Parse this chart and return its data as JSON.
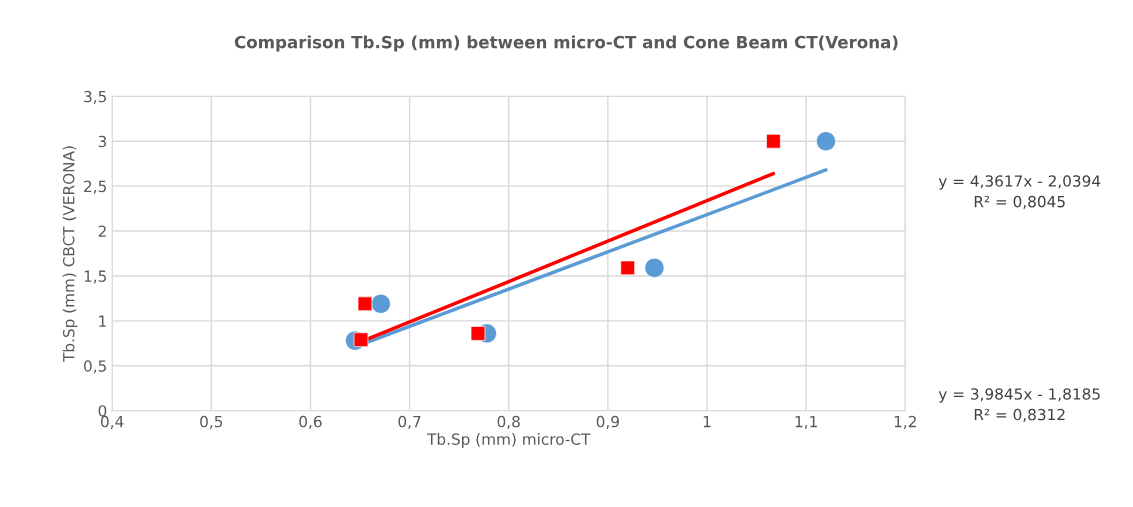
{
  "chart_data": {
    "type": "scatter",
    "title": "Comparison Tb.Sp (mm) between micro-CT and Cone Beam CT(Verona)",
    "xlabel": "Tb.Sp (mm) micro-CT",
    "ylabel": "Tb.Sp (mm) CBCT (VERONA)",
    "series": [
      {
        "marker": "circle",
        "color": "#5b9bd5",
        "x": [
          0.645,
          0.671,
          0.778,
          0.947,
          1.12
        ],
        "values": [
          0.78,
          1.19,
          0.86,
          1.59,
          3.0
        ]
      },
      {
        "marker": "square",
        "color": "#ff0000",
        "x": [
          0.651,
          0.655,
          0.769,
          0.92,
          1.067
        ],
        "values": [
          0.79,
          1.19,
          0.86,
          1.59,
          3.0
        ]
      },
      {
        "type": "line",
        "color": "#5b9bd5",
        "x": [
          0.647,
          1.12
        ],
        "values": [
          0.72,
          2.68
        ]
      },
      {
        "type": "line",
        "color": "#ff0000",
        "x": [
          0.645,
          1.067
        ],
        "values": [
          0.74,
          2.64
        ]
      }
    ],
    "annotations": [
      "y = 4,3617x - 2,0394\nR² = 0,8045",
      "y = 3,9845x - 1,8185\nR² = 0,8312"
    ],
    "xlim": [
      0.4,
      1.2
    ],
    "xticks": [
      {
        "value": 0.4,
        "label": "0,4"
      },
      {
        "value": 0.5,
        "label": "0,5"
      },
      {
        "value": 0.6,
        "label": "0,6"
      },
      {
        "value": 0.7,
        "label": "0,7"
      },
      {
        "value": 0.8,
        "label": "0,8"
      },
      {
        "value": 0.9,
        "label": "0,9"
      },
      1,
      {
        "value": 1.1,
        "label": "1,1"
      },
      {
        "value": 1.2,
        "label": "1,2"
      }
    ],
    "ylim": [
      0,
      3.5
    ],
    "yticks": [
      0,
      {
        "value": 0.5,
        "label": "0,5"
      },
      1,
      {
        "value": 1.5,
        "label": "1,5"
      },
      2,
      {
        "value": 2.5,
        "label": "2,5"
      },
      3,
      {
        "value": 3.5,
        "label": "3,5"
      }
    ],
    "grid": true,
    "legend": false
  }
}
